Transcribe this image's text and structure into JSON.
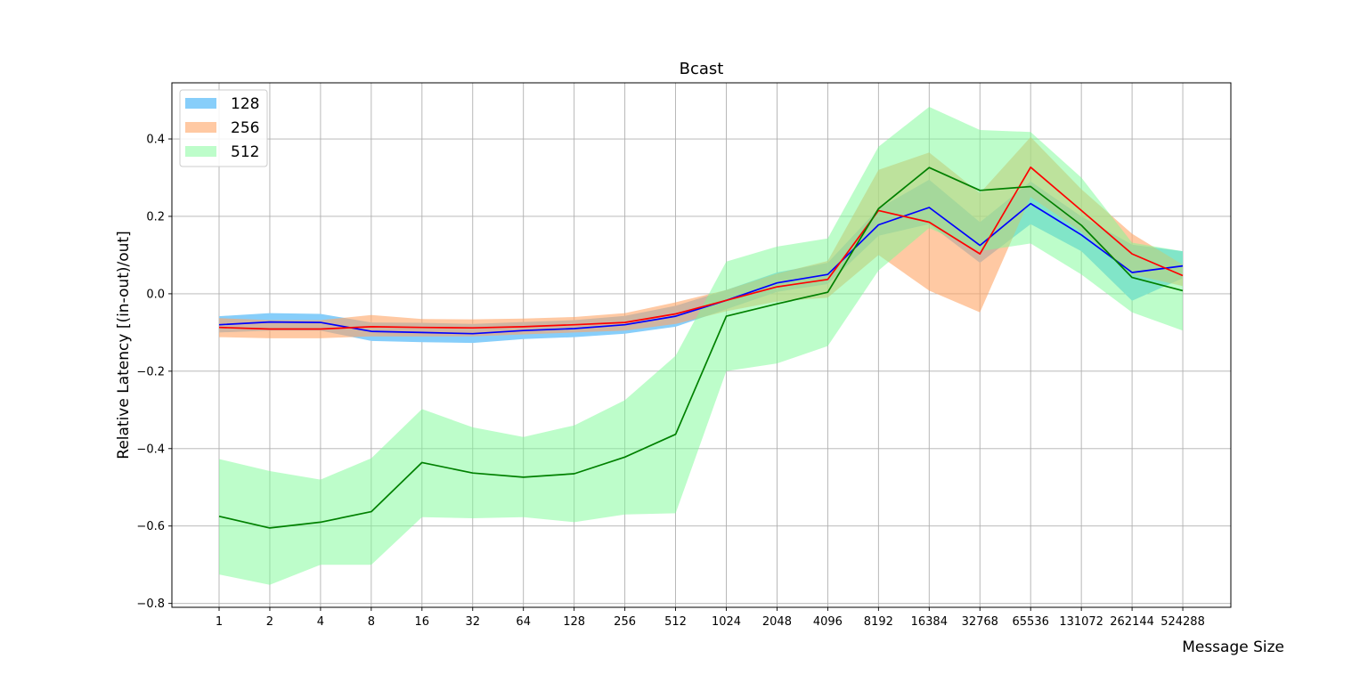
{
  "chart_data": {
    "type": "line",
    "title": "Bcast",
    "xlabel": "Message Size",
    "ylabel": "Relative Latency [(in-out)/out]",
    "categories": [
      "1",
      "2",
      "4",
      "8",
      "16",
      "32",
      "64",
      "128",
      "256",
      "512",
      "1024",
      "2048",
      "4096",
      "8192",
      "16384",
      "32768",
      "65536",
      "131072",
      "262144",
      "524288"
    ],
    "ylim": [
      -0.81,
      0.545
    ],
    "yticks": [
      -0.8,
      -0.6,
      -0.4,
      -0.2,
      0.0,
      0.2,
      0.4
    ],
    "ytick_labels": [
      "−0.8",
      "−0.6",
      "−0.4",
      "−0.2",
      "0.0",
      "0.2",
      "0.4"
    ],
    "grid": true,
    "legend_position": "top-left",
    "series": [
      {
        "name": "128",
        "line_color": "#0000ff",
        "band_color": "#87cefa",
        "band_opacity": 1.0,
        "values": [
          -0.08,
          -0.073,
          -0.074,
          -0.097,
          -0.1,
          -0.103,
          -0.095,
          -0.09,
          -0.08,
          -0.058,
          -0.017,
          0.028,
          0.05,
          0.178,
          0.223,
          0.125,
          0.233,
          0.152,
          0.055,
          0.072
        ],
        "lower": [
          -0.1,
          -0.095,
          -0.095,
          -0.122,
          -0.125,
          -0.127,
          -0.117,
          -0.112,
          -0.103,
          -0.085,
          -0.04,
          0.005,
          0.025,
          0.15,
          0.18,
          0.08,
          0.18,
          0.11,
          -0.018,
          0.04
        ],
        "upper": [
          -0.058,
          -0.05,
          -0.052,
          -0.074,
          -0.075,
          -0.078,
          -0.073,
          -0.068,
          -0.057,
          -0.031,
          0.01,
          0.055,
          0.08,
          0.22,
          0.295,
          0.185,
          0.29,
          0.2,
          0.127,
          0.11
        ]
      },
      {
        "name": "256",
        "line_color": "#ff0000",
        "band_color": "#ffa566",
        "band_opacity": 0.6,
        "values": [
          -0.087,
          -0.091,
          -0.091,
          -0.085,
          -0.087,
          -0.088,
          -0.085,
          -0.08,
          -0.074,
          -0.052,
          -0.017,
          0.018,
          0.037,
          0.215,
          0.185,
          0.103,
          0.327,
          0.215,
          0.103,
          0.047
        ],
        "lower": [
          -0.112,
          -0.115,
          -0.115,
          -0.11,
          -0.11,
          -0.11,
          -0.105,
          -0.1,
          -0.095,
          -0.078,
          -0.045,
          -0.02,
          -0.01,
          0.1,
          0.008,
          -0.048,
          0.25,
          0.16,
          0.05,
          0.02
        ],
        "upper": [
          -0.063,
          -0.068,
          -0.068,
          -0.055,
          -0.065,
          -0.066,
          -0.064,
          -0.06,
          -0.05,
          -0.022,
          0.01,
          0.052,
          0.085,
          0.32,
          0.365,
          0.26,
          0.405,
          0.27,
          0.155,
          0.075
        ]
      },
      {
        "name": "512",
        "line_color": "#008000",
        "band_color": "#7cfc96",
        "band_opacity": 0.5,
        "values": [
          -0.575,
          -0.605,
          -0.59,
          -0.563,
          -0.436,
          -0.463,
          -0.474,
          -0.465,
          -0.422,
          -0.363,
          -0.058,
          -0.026,
          0.004,
          0.22,
          0.326,
          0.267,
          0.277,
          0.177,
          0.042,
          0.008
        ],
        "lower": [
          -0.725,
          -0.752,
          -0.7,
          -0.7,
          -0.577,
          -0.58,
          -0.577,
          -0.59,
          -0.57,
          -0.567,
          -0.2,
          -0.18,
          -0.135,
          0.06,
          0.17,
          0.11,
          0.13,
          0.05,
          -0.048,
          -0.095
        ],
        "upper": [
          -0.427,
          -0.458,
          -0.48,
          -0.425,
          -0.298,
          -0.345,
          -0.37,
          -0.34,
          -0.275,
          -0.16,
          0.083,
          0.122,
          0.143,
          0.38,
          0.483,
          0.423,
          0.418,
          0.3,
          0.132,
          0.11
        ]
      }
    ]
  }
}
